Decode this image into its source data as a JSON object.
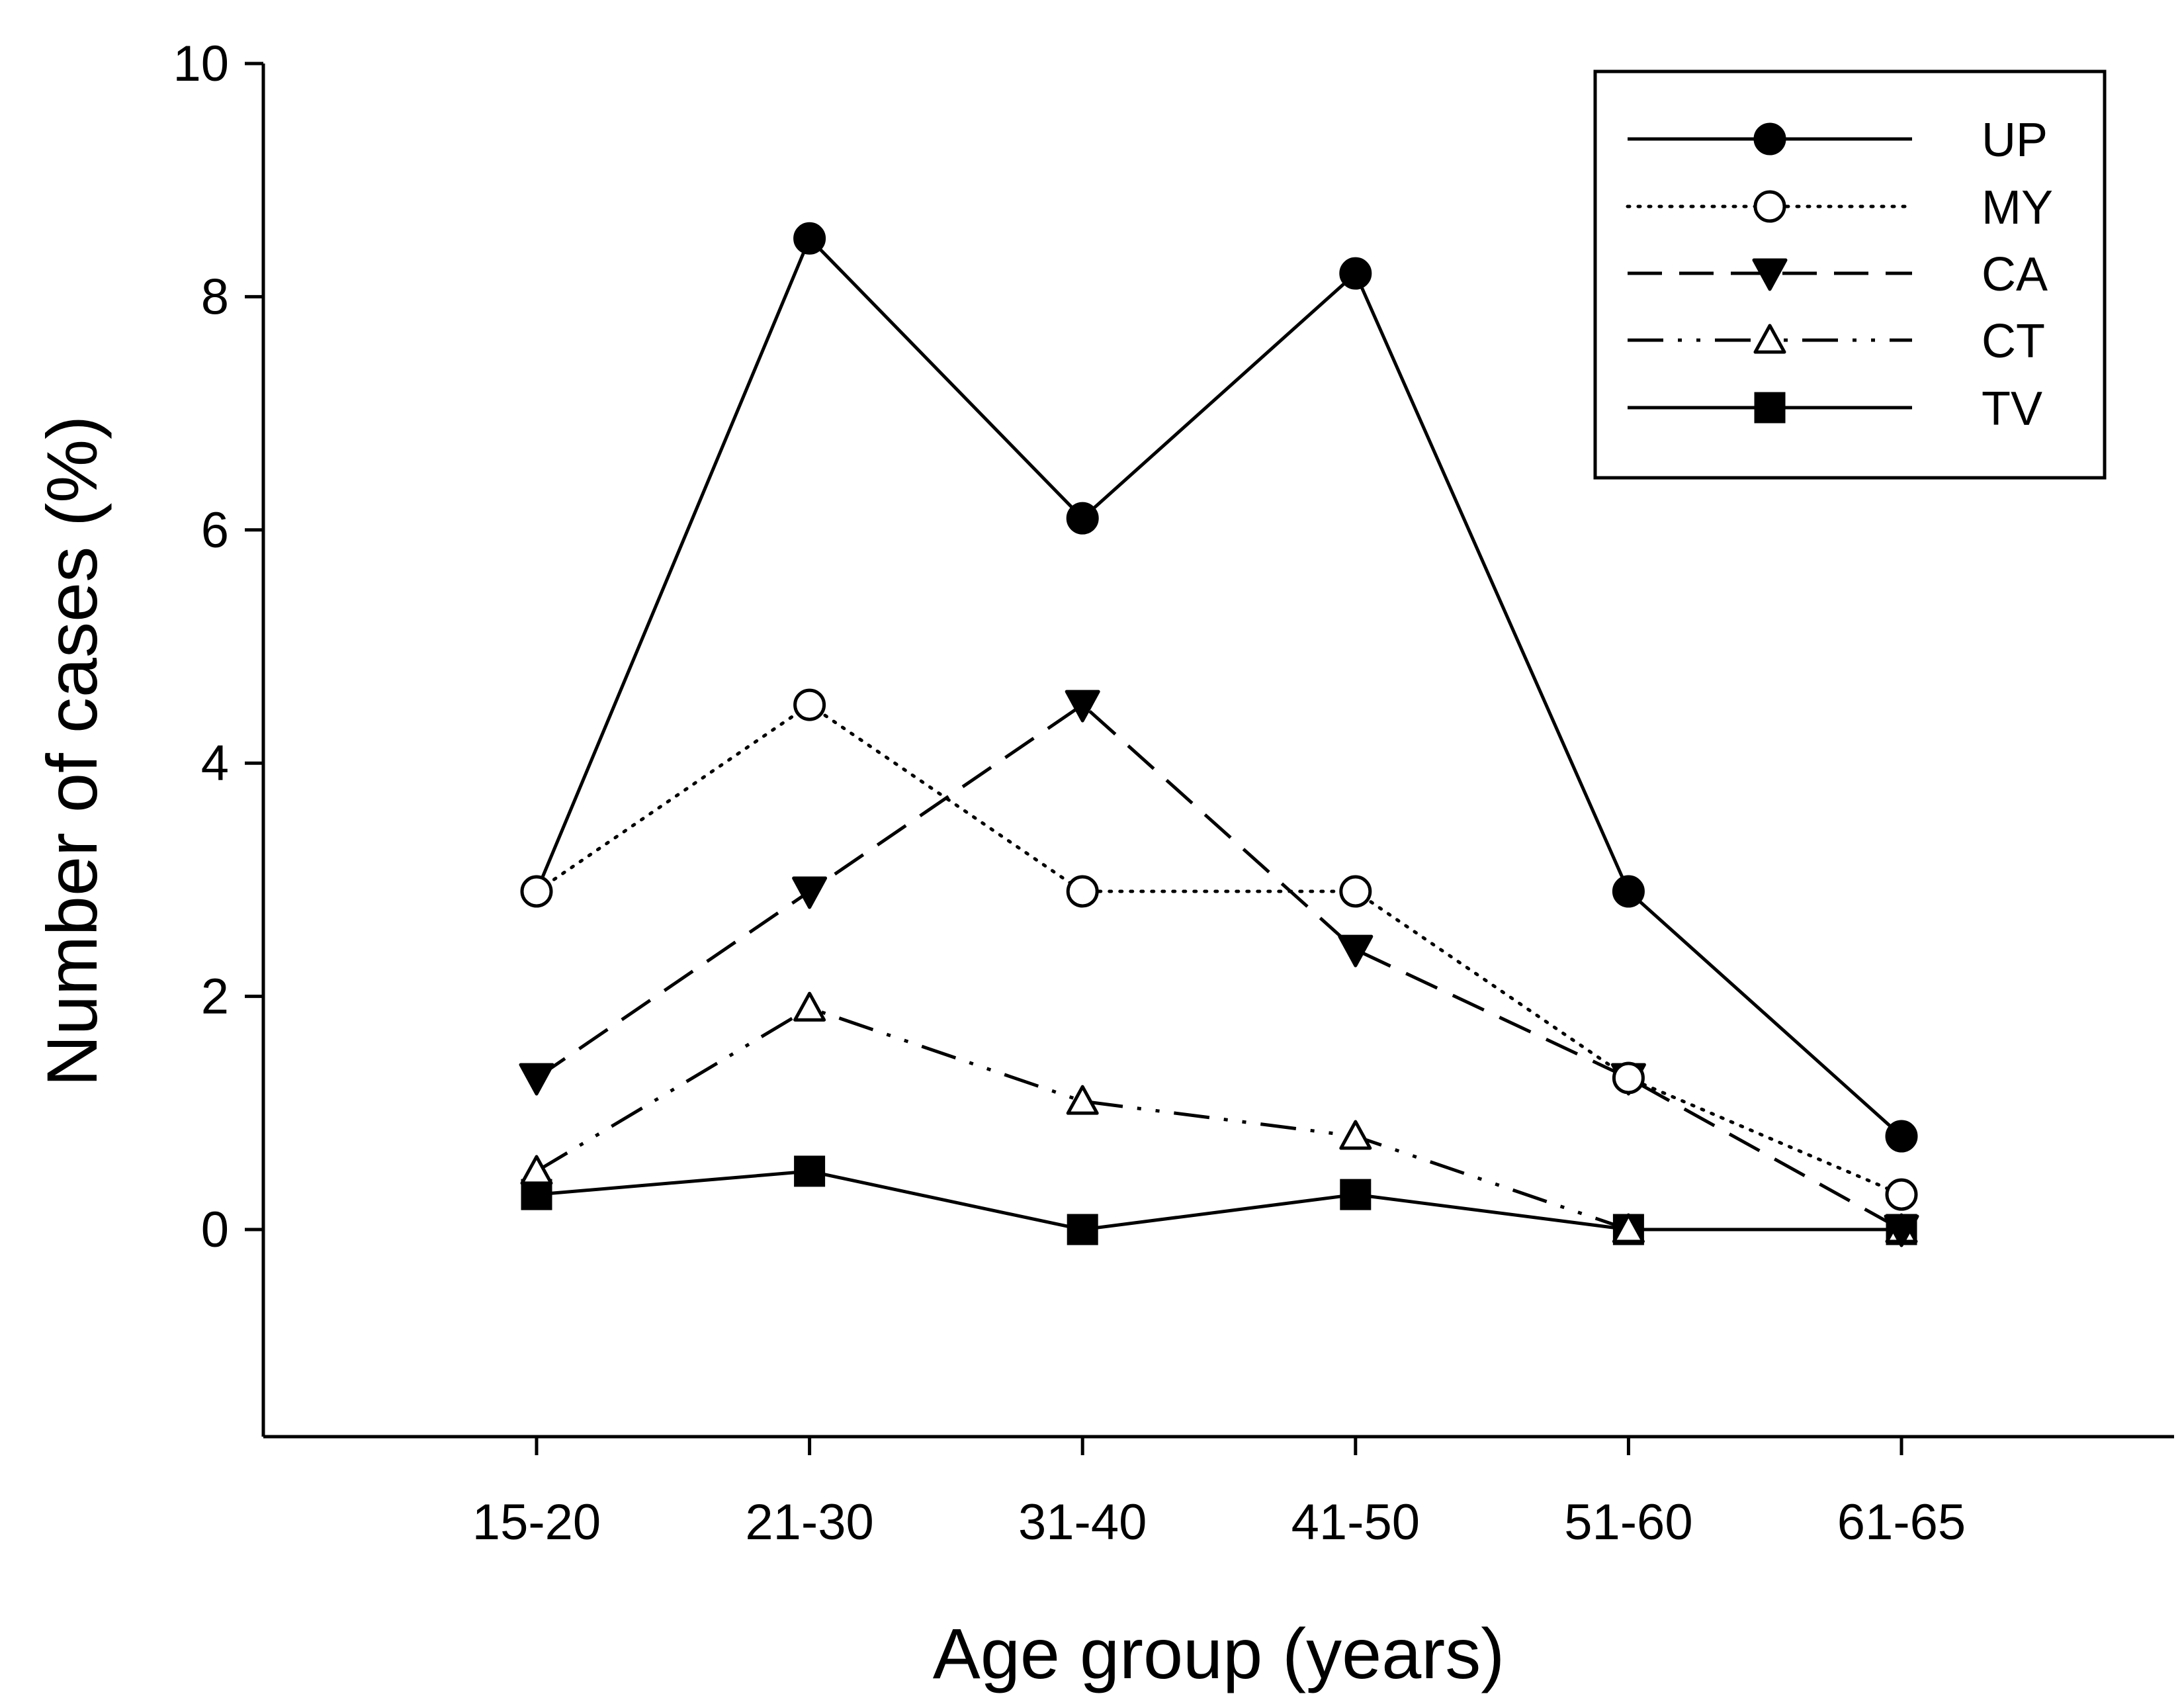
{
  "chart_data": {
    "type": "line",
    "title": "",
    "xlabel": "Age group (years)",
    "ylabel": "Number of cases (%)",
    "categories": [
      "15-20",
      "21-30",
      "31-40",
      "41-50",
      "51-60",
      "61-65"
    ],
    "ylim": [
      -1.8,
      10
    ],
    "yticks": [
      0,
      2,
      4,
      6,
      8,
      10
    ],
    "grid": false,
    "legend_position": "top-right",
    "series": [
      {
        "name": "UP",
        "marker": "filled-circle",
        "line": "solid",
        "values": [
          null,
          8.5,
          6.1,
          8.2,
          2.9,
          0.8
        ]
      },
      {
        "name": "MY",
        "marker": "open-circle",
        "line": "dotted",
        "values": [
          2.9,
          4.5,
          2.9,
          2.9,
          1.3,
          0.3
        ]
      },
      {
        "name": "CA",
        "marker": "filled-triangle-down",
        "line": "dashed",
        "values": [
          1.3,
          2.9,
          4.5,
          2.4,
          1.3,
          0.0
        ]
      },
      {
        "name": "CT",
        "marker": "open-triangle-up",
        "line": "dash-dot-dot",
        "values": [
          0.5,
          1.9,
          1.1,
          0.8,
          0.0,
          0.0
        ]
      },
      {
        "name": "TV",
        "marker": "filled-square",
        "line": "solid",
        "values": [
          0.3,
          0.5,
          0.0,
          0.3,
          0.0,
          0.0
        ]
      }
    ],
    "up_line_start_from": {
      "category": "15-20",
      "value": 2.9
    }
  }
}
